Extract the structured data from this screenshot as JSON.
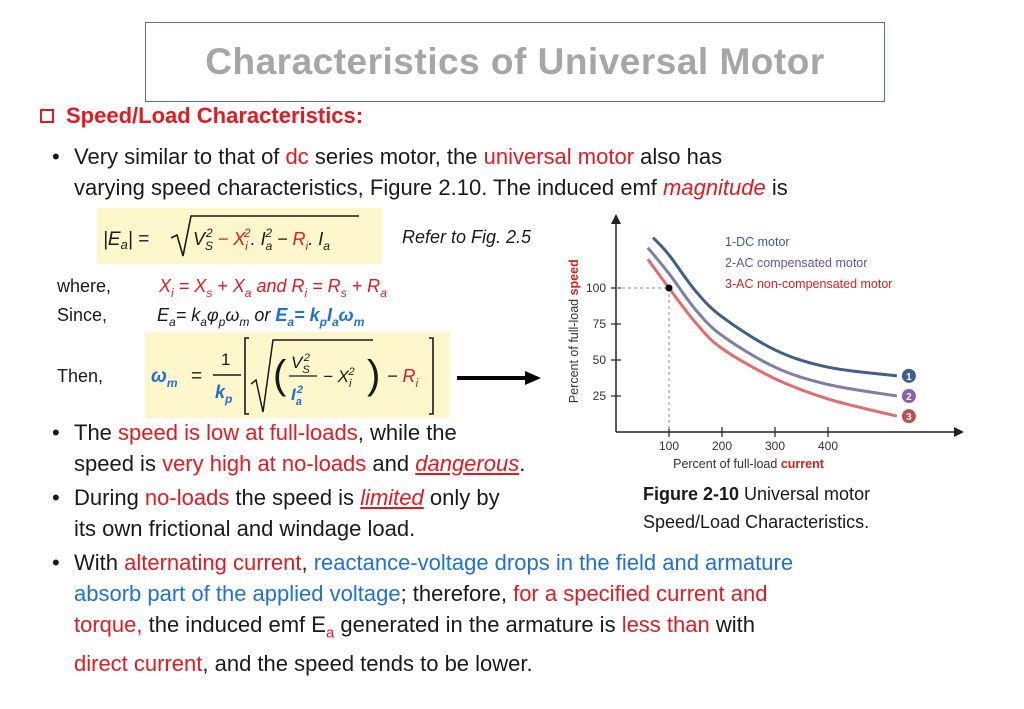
{
  "title": "Characteristics of Universal Motor",
  "heading": "Speed/Load Characteristics:",
  "bullet1": {
    "t1": "Very similar to that of ",
    "t2": "dc",
    "t3": " series motor, the ",
    "t4": "universal motor",
    "t5": " also has",
    "t6": "varying speed characteristics, Figure 2.10. The induced emf ",
    "t7": "magnitude",
    "t8": " is"
  },
  "formula": {
    "refer": "Refer to Fig. 2.5",
    "where_label": "where,",
    "since_label": "Since,",
    "then_label": "Then,"
  },
  "bullet2": {
    "t1": "The ",
    "t2": "speed is low at full-loads",
    "t3": ", while the",
    "t4": "speed is ",
    "t5": "very high at no-loads",
    "t6": " and ",
    "t7": "dangerous",
    "t8": "."
  },
  "bullet3": {
    "t1": "During ",
    "t2": "no-loads",
    "t3": " the speed is ",
    "t4": "limited",
    "t5": " only by",
    "t6": "its own frictional and windage load."
  },
  "bullet4": {
    "t1": "With ",
    "t2": "alternating current",
    "t3": ", ",
    "t4": "reactance-voltage drops in the field and armature",
    "t5": "absorb part of the applied voltage",
    "t6": "; therefore, ",
    "t7": "for a specified current and",
    "t8": "torque,",
    "t9": " the induced emf E",
    "t10": "a",
    "t11": " generated in the armature is ",
    "t12": "less than",
    "t13": " with",
    "t14": "direct current",
    "t15": ", and the speed tends to be lower."
  },
  "figure_caption": {
    "bold": "Figure 2-10",
    "rest": " Universal motor",
    "line2": "Speed/Load Characteristics."
  },
  "chart_data": {
    "type": "line",
    "xlabel_prefix": "Percent of full-load ",
    "xlabel_emph": "current",
    "ylabel_prefix": "Percent of full-load ",
    "ylabel_emph": "speed",
    "x_ticks": [
      "100",
      "200",
      "300",
      "400"
    ],
    "y_ticks": [
      "25",
      "50",
      "75",
      "100"
    ],
    "xlim": [
      0,
      520
    ],
    "ylim": [
      0,
      140
    ],
    "marker_point": {
      "x": 100,
      "y": 100
    },
    "series": [
      {
        "name": "1-DC motor",
        "marker": "1",
        "color": "#3f5f88",
        "x": [
          70,
          100,
          150,
          200,
          300,
          400,
          530
        ],
        "y": [
          135,
          123,
          98,
          80,
          57,
          45,
          39
        ]
      },
      {
        "name": "2-AC compensated motor",
        "marker": "2",
        "color": "#7f7fa5",
        "x": [
          60,
          100,
          150,
          200,
          300,
          400,
          530
        ],
        "y": [
          128,
          110,
          85,
          67,
          45,
          33,
          25
        ]
      },
      {
        "name": "3-AC non-compensated motor",
        "marker": "3",
        "color": "#e16d6d",
        "x": [
          60,
          100,
          150,
          200,
          300,
          400,
          530
        ],
        "y": [
          120,
          100,
          76,
          58,
          37,
          23,
          11
        ]
      }
    ],
    "marker_colors": [
      "#3f5f88",
      "#8a5fae",
      "#c0504d"
    ],
    "legend_colors": [
      "#3f5f88",
      "#6b52a0",
      "#d41f1f"
    ]
  }
}
